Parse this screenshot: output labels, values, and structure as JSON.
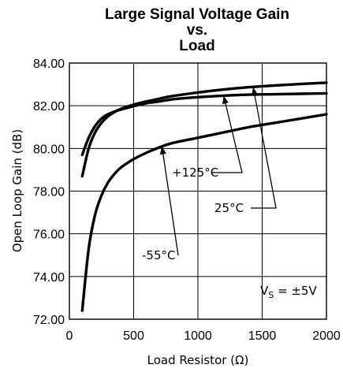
{
  "chart_data": {
    "type": "line",
    "title_lines": [
      "Large Signal Voltage Gain",
      "vs.",
      "Load"
    ],
    "xlabel": "Load Resistor (Ω)",
    "ylabel": "Open Loop Gain (dB)",
    "xlim": [
      0,
      2000
    ],
    "ylim": [
      72,
      84
    ],
    "x_ticks": [
      "0",
      "500",
      "1000",
      "1500",
      "2000"
    ],
    "y_ticks": [
      "72.00",
      "74.00",
      "76.00",
      "78.00",
      "80.00",
      "82.00",
      "84.00"
    ],
    "grid": true,
    "condition_label": {
      "main": "V",
      "sub": "S",
      "rest": " = ±5V"
    },
    "series": [
      {
        "name": "-55°C",
        "x": [
          100,
          150,
          200,
          250,
          300,
          350,
          400,
          500,
          600,
          700,
          800,
          1000,
          1200,
          1400,
          1600,
          1800,
          2000
        ],
        "y": [
          72.4,
          75.3,
          76.9,
          77.8,
          78.4,
          78.8,
          79.1,
          79.5,
          79.8,
          80.05,
          80.25,
          80.5,
          80.75,
          81.0,
          81.2,
          81.4,
          81.6
        ]
      },
      {
        "name": "+125°C",
        "x": [
          100,
          150,
          200,
          250,
          300,
          350,
          400,
          500,
          600,
          700,
          800,
          1000,
          1200,
          1400,
          1600,
          1800,
          2000
        ],
        "y": [
          79.7,
          80.5,
          81.05,
          81.4,
          81.6,
          81.72,
          81.82,
          81.98,
          82.12,
          82.2,
          82.3,
          82.4,
          82.47,
          82.52,
          82.54,
          82.56,
          82.58
        ]
      },
      {
        "name": "25°C",
        "x": [
          100,
          150,
          200,
          250,
          300,
          350,
          400,
          500,
          600,
          700,
          800,
          1000,
          1200,
          1400,
          1600,
          1800,
          2000
        ],
        "y": [
          78.7,
          80.0,
          80.75,
          81.2,
          81.5,
          81.7,
          81.85,
          82.05,
          82.2,
          82.33,
          82.45,
          82.62,
          82.76,
          82.87,
          82.95,
          83.02,
          83.08
        ]
      }
    ],
    "annotations": [
      {
        "text": "+125°C",
        "points_to": [
          1200,
          82.47
        ]
      },
      {
        "text": "25°C",
        "points_to": [
          1430,
          82.87
        ]
      },
      {
        "text": "-55°C",
        "points_to": [
          720,
          80.1
        ]
      }
    ]
  }
}
